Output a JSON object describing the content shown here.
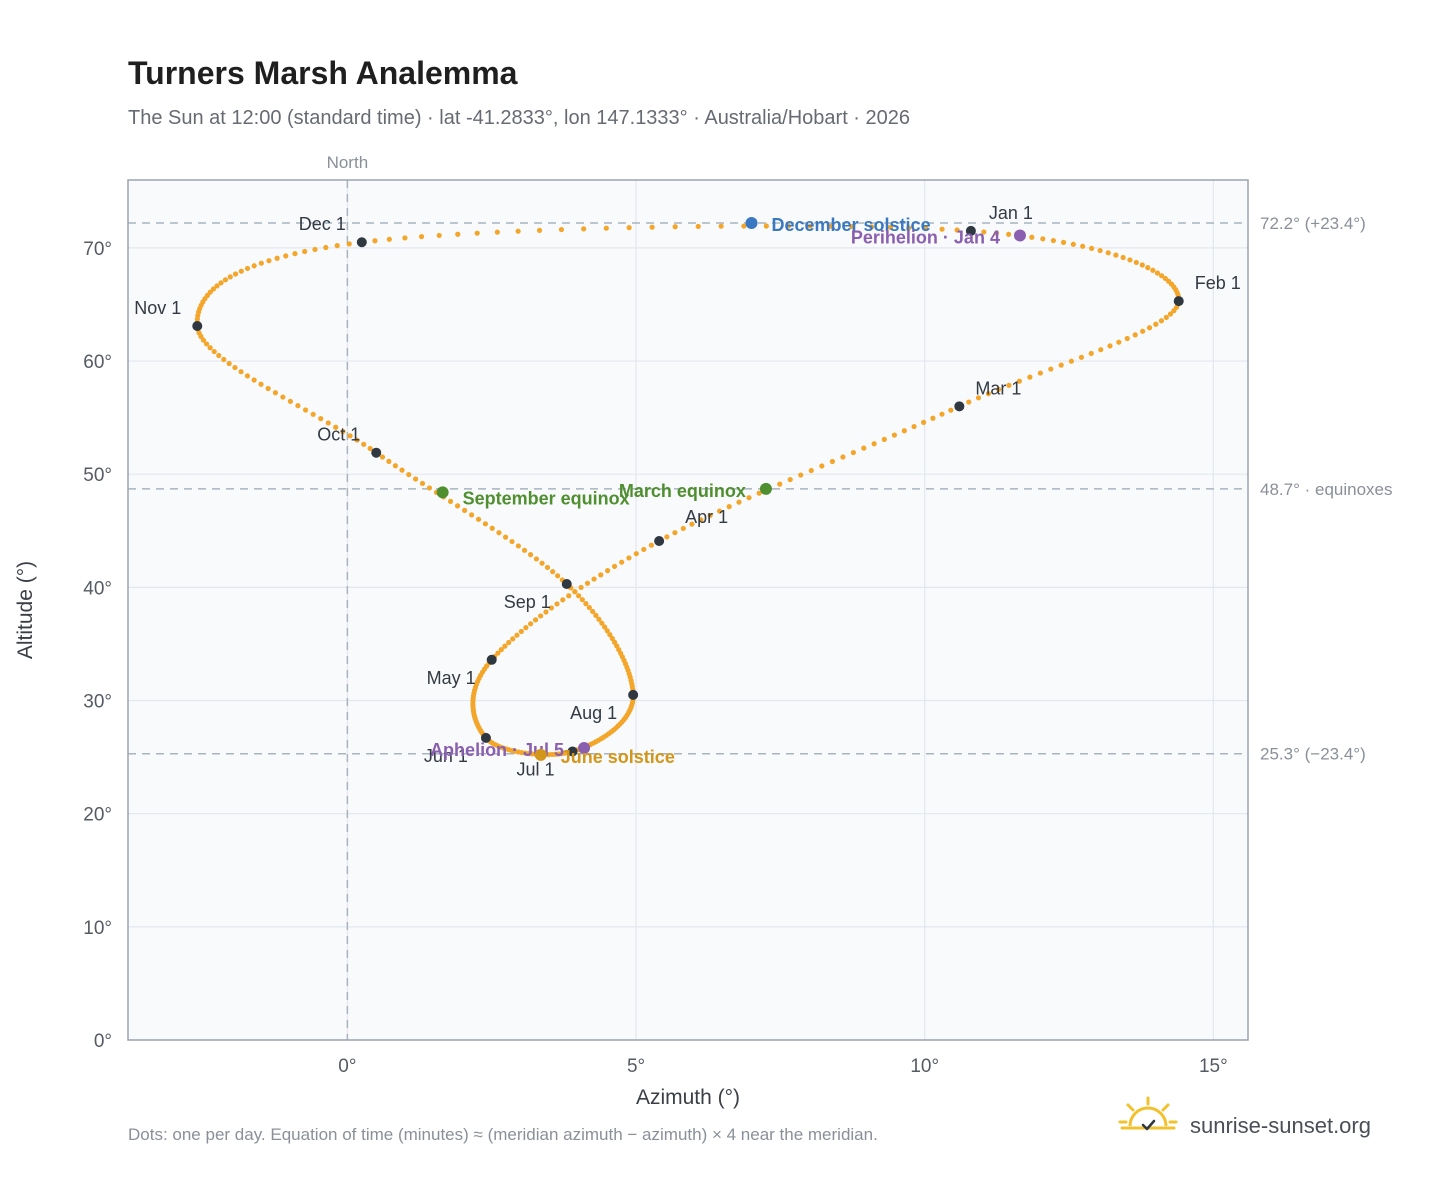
{
  "title": "Turners Marsh Analemma",
  "subtitle": "The Sun at 12:00 (standard time) · lat -41.2833°, lon 147.1333° · Australia/Hobart · 2026",
  "footnote": "Dots: one per day. Equation of time (minutes) ≈ (meridian azimuth − azimuth) × 4 near the meridian.",
  "brand": {
    "text": "sunrise-sunset.org",
    "icon": "sun-logo-icon"
  },
  "colors": {
    "path": "#f3a62a",
    "month_dot": "#2f3740",
    "december": "#3a78c2",
    "june": "#d4961a",
    "equinox": "#4f8f2f",
    "perihelion": "#8a5fb0",
    "plot_bg": "#f8fafc",
    "grid": "#e4e8ee",
    "ref_line": "#a8b4be"
  },
  "chart_data": {
    "type": "scatter",
    "xlabel": "Azimuth (°)",
    "ylabel": "Altitude (°)",
    "xlim": [
      -3.8,
      15.6
    ],
    "ylim": [
      0,
      76
    ],
    "x_ticks": [
      0,
      5,
      10,
      15
    ],
    "x_tick_labels": [
      "0°",
      "5°",
      "10°",
      "15°"
    ],
    "y_ticks": [
      0,
      10,
      20,
      30,
      40,
      50,
      60,
      70
    ],
    "y_tick_labels": [
      "0°",
      "10°",
      "20°",
      "30°",
      "40°",
      "50°",
      "60°",
      "70°"
    ],
    "grid": true,
    "meridian": {
      "x": 0,
      "label": "North"
    },
    "reference_lines": [
      {
        "y": 72.2,
        "label": "72.2° (+23.4°)"
      },
      {
        "y": 48.7,
        "label": "48.7° · equinoxes"
      },
      {
        "y": 25.3,
        "label": "25.3° (−23.4°)"
      }
    ],
    "months": [
      {
        "label": "Jan 1",
        "day": 1,
        "x": 10.8,
        "y": 71.5
      },
      {
        "label": "Feb 1",
        "day": 32,
        "x": 14.4,
        "y": 65.3
      },
      {
        "label": "Mar 1",
        "day": 60,
        "x": 10.6,
        "y": 56.0
      },
      {
        "label": "Apr 1",
        "day": 91,
        "x": 5.4,
        "y": 44.1
      },
      {
        "label": "May 1",
        "day": 121,
        "x": 2.5,
        "y": 33.6
      },
      {
        "label": "Jun 1",
        "day": 152,
        "x": 2.4,
        "y": 26.7
      },
      {
        "label": "Jul 1",
        "day": 182,
        "x": 3.9,
        "y": 25.5
      },
      {
        "label": "Aug 1",
        "day": 213,
        "x": 4.95,
        "y": 30.5
      },
      {
        "label": "Sep 1",
        "day": 244,
        "x": 3.8,
        "y": 40.3
      },
      {
        "label": "Oct 1",
        "day": 274,
        "x": 0.5,
        "y": 51.9
      },
      {
        "label": "Nov 1",
        "day": 305,
        "x": -2.6,
        "y": 63.1
      },
      {
        "label": "Dec 1",
        "day": 335,
        "x": 0.25,
        "y": 70.5
      }
    ],
    "events": [
      {
        "label": "December solstice",
        "x": 7.0,
        "y": 72.2,
        "color": "#3a78c2"
      },
      {
        "label": "Perihelion · Jan 4",
        "x": 11.65,
        "y": 71.1,
        "color": "#8a5fb0"
      },
      {
        "label": "March equinox",
        "x": 7.25,
        "y": 48.7,
        "color": "#4f8f2f"
      },
      {
        "label": "September equinox",
        "x": 1.65,
        "y": 48.4,
        "color": "#4f8f2f"
      },
      {
        "label": "Aphelion · Jul 5",
        "x": 4.1,
        "y": 25.8,
        "color": "#8a5fb0"
      },
      {
        "label": "June solstice",
        "x": 3.35,
        "y": 25.2,
        "color": "#d4961a"
      }
    ]
  }
}
